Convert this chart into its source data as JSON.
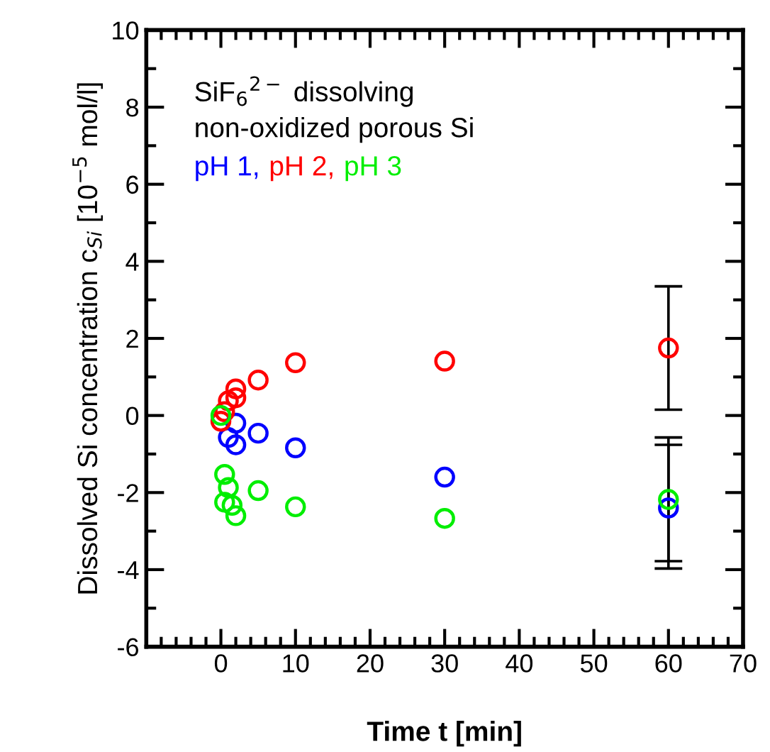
{
  "chart_data": {
    "type": "scatter",
    "xlabel": "Time t [min]",
    "ylabel": "Dissolved Si concentration c$_{Si}$ [10$^{−5}$ mol/l]",
    "annotations": [
      "SiF$_{6}$$^{2−}$ dissolving",
      "non-oxidized porous Si"
    ],
    "xlim": [
      -10,
      70
    ],
    "xticks": [
      {
        "value": -10,
        "label": null
      },
      0,
      10,
      20,
      30,
      40,
      50,
      60,
      70
    ],
    "ylim": [
      -6,
      10
    ],
    "yticks": [
      -6,
      -4,
      -2,
      0,
      2,
      4,
      6,
      8,
      10
    ],
    "marker": "circle",
    "legend": "top left",
    "grid": false,
    "series": [
      {
        "name": "pH 1,",
        "color": "#0000ff",
        "x": [
          1,
          2,
          2,
          5,
          10,
          30,
          60
        ],
        "values": [
          -0.57,
          -0.2,
          -0.76,
          -0.46,
          -0.84,
          -1.6,
          -2.4
        ],
        "errors": [
          null,
          null,
          null,
          null,
          null,
          null,
          [
            -3.97,
            -0.76
          ]
        ]
      },
      {
        "name": "pH 2,",
        "color": "#ff0000",
        "x": [
          0,
          0.5,
          1,
          2,
          2,
          5,
          10,
          30,
          60
        ],
        "values": [
          -0.15,
          0.1,
          0.38,
          0.69,
          0.46,
          0.92,
          1.37,
          1.41,
          1.75
        ],
        "errors": [
          null,
          null,
          null,
          null,
          null,
          null,
          null,
          null,
          [
            0.15,
            3.35
          ]
        ]
      },
      {
        "name": "pH 3",
        "color": "#00ee00",
        "x": [
          0,
          0.5,
          1,
          0.5,
          1.5,
          2,
          5,
          10,
          30,
          60
        ],
        "values": [
          0,
          -1.53,
          -1.87,
          -2.25,
          -2.33,
          -2.6,
          -1.95,
          -2.37,
          -2.67,
          -2.18
        ],
        "errors": [
          null,
          null,
          null,
          null,
          null,
          null,
          null,
          null,
          null,
          [
            -3.78,
            -0.57
          ]
        ]
      }
    ]
  }
}
